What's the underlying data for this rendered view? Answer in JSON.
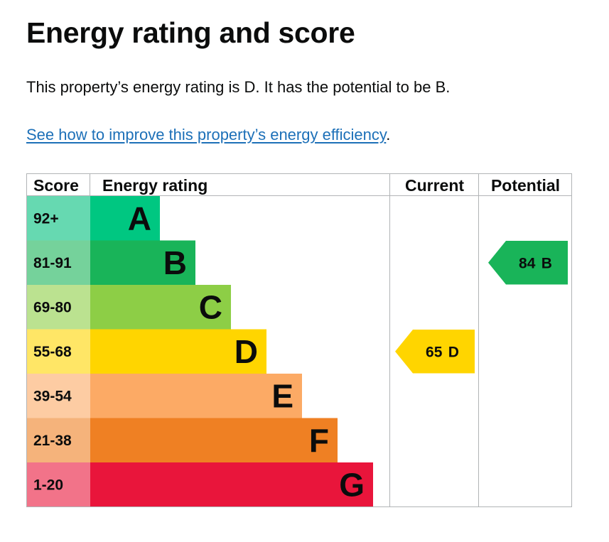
{
  "heading": "Energy rating and score",
  "summary": "This property’s energy rating is D. It has the potential to be B.",
  "improve_link": {
    "text": "See how to improve this property’s energy efficiency",
    "suffix": "."
  },
  "chart_data": {
    "type": "bar",
    "headers": {
      "score": "Score",
      "rating": "Energy rating",
      "current": "Current",
      "potential": "Potential"
    },
    "bands": [
      {
        "letter": "A",
        "range": "92+",
        "min": 92,
        "max": 100,
        "color": "#00c781",
        "score_bg": "#66d9b1"
      },
      {
        "letter": "B",
        "range": "81-91",
        "min": 81,
        "max": 91,
        "color": "#19b459",
        "score_bg": "#75d29b"
      },
      {
        "letter": "C",
        "range": "69-80",
        "min": 69,
        "max": 80,
        "color": "#8dce46",
        "score_bg": "#bbe290"
      },
      {
        "letter": "D",
        "range": "55-68",
        "min": 55,
        "max": 68,
        "color": "#ffd500",
        "score_bg": "#ffe666"
      },
      {
        "letter": "E",
        "range": "39-54",
        "min": 39,
        "max": 54,
        "color": "#fcaa65",
        "score_bg": "#fdcca3"
      },
      {
        "letter": "F",
        "range": "21-38",
        "min": 21,
        "max": 38,
        "color": "#ef8023",
        "score_bg": "#f5b37b"
      },
      {
        "letter": "G",
        "range": "1-20",
        "min": 1,
        "max": 20,
        "color": "#e9153b",
        "score_bg": "#f27389"
      }
    ],
    "current": {
      "score": 65,
      "band": "D",
      "color": "#ffd500"
    },
    "potential": {
      "score": 84,
      "band": "B",
      "color": "#19b459"
    },
    "grid_color": "#b1b4b6"
  }
}
